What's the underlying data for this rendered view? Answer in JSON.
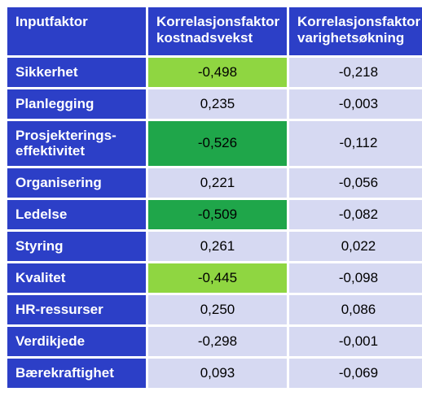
{
  "colors": {
    "header_bg": "#2c3fc7",
    "rowlabel_bg": "#2c3fc7",
    "cell_neutral": "#d6d9f2",
    "cell_highlight_light": "#8fd641",
    "cell_highlight_dark": "#1fa64a",
    "header_text": "#ffffff",
    "cell_text": "#000000"
  },
  "columns": {
    "c0": "Inputfaktor",
    "c1": "Korrelasjonsfaktor kostnadsvekst",
    "c2": "Korrelasjonsfaktor varighetsøkning"
  },
  "col_widths": {
    "c0": 170,
    "c1": 170,
    "c2": 170
  },
  "rows": [
    {
      "label": "Sikkerhet",
      "v1": "-0,498",
      "v1_hl": "light",
      "v2": "-0,218",
      "v2_hl": "none"
    },
    {
      "label": "Planlegging",
      "v1": "0,235",
      "v1_hl": "none",
      "v2": "-0,003",
      "v2_hl": "none"
    },
    {
      "label": "Prosjekterings-\neffektivitet",
      "v1": "-0,526",
      "v1_hl": "dark",
      "v2": "-0,112",
      "v2_hl": "none"
    },
    {
      "label": "Organisering",
      "v1": "0,221",
      "v1_hl": "none",
      "v2": "-0,056",
      "v2_hl": "none"
    },
    {
      "label": "Ledelse",
      "v1": "-0,509",
      "v1_hl": "dark",
      "v2": "-0,082",
      "v2_hl": "none"
    },
    {
      "label": "Styring",
      "v1": "0,261",
      "v1_hl": "none",
      "v2": "0,022",
      "v2_hl": "none"
    },
    {
      "label": "Kvalitet",
      "v1": "-0,445",
      "v1_hl": "light",
      "v2": "-0,098",
      "v2_hl": "none"
    },
    {
      "label": "HR-ressurser",
      "v1": "0,250",
      "v1_hl": "none",
      "v2": "0,086",
      "v2_hl": "none"
    },
    {
      "label": "Verdikjede",
      "v1": "-0,298",
      "v1_hl": "none",
      "v2": "-0,001",
      "v2_hl": "none"
    },
    {
      "label": "Bærekraftighet",
      "v1": "0,093",
      "v1_hl": "none",
      "v2": "-0,069",
      "v2_hl": "none"
    }
  ]
}
